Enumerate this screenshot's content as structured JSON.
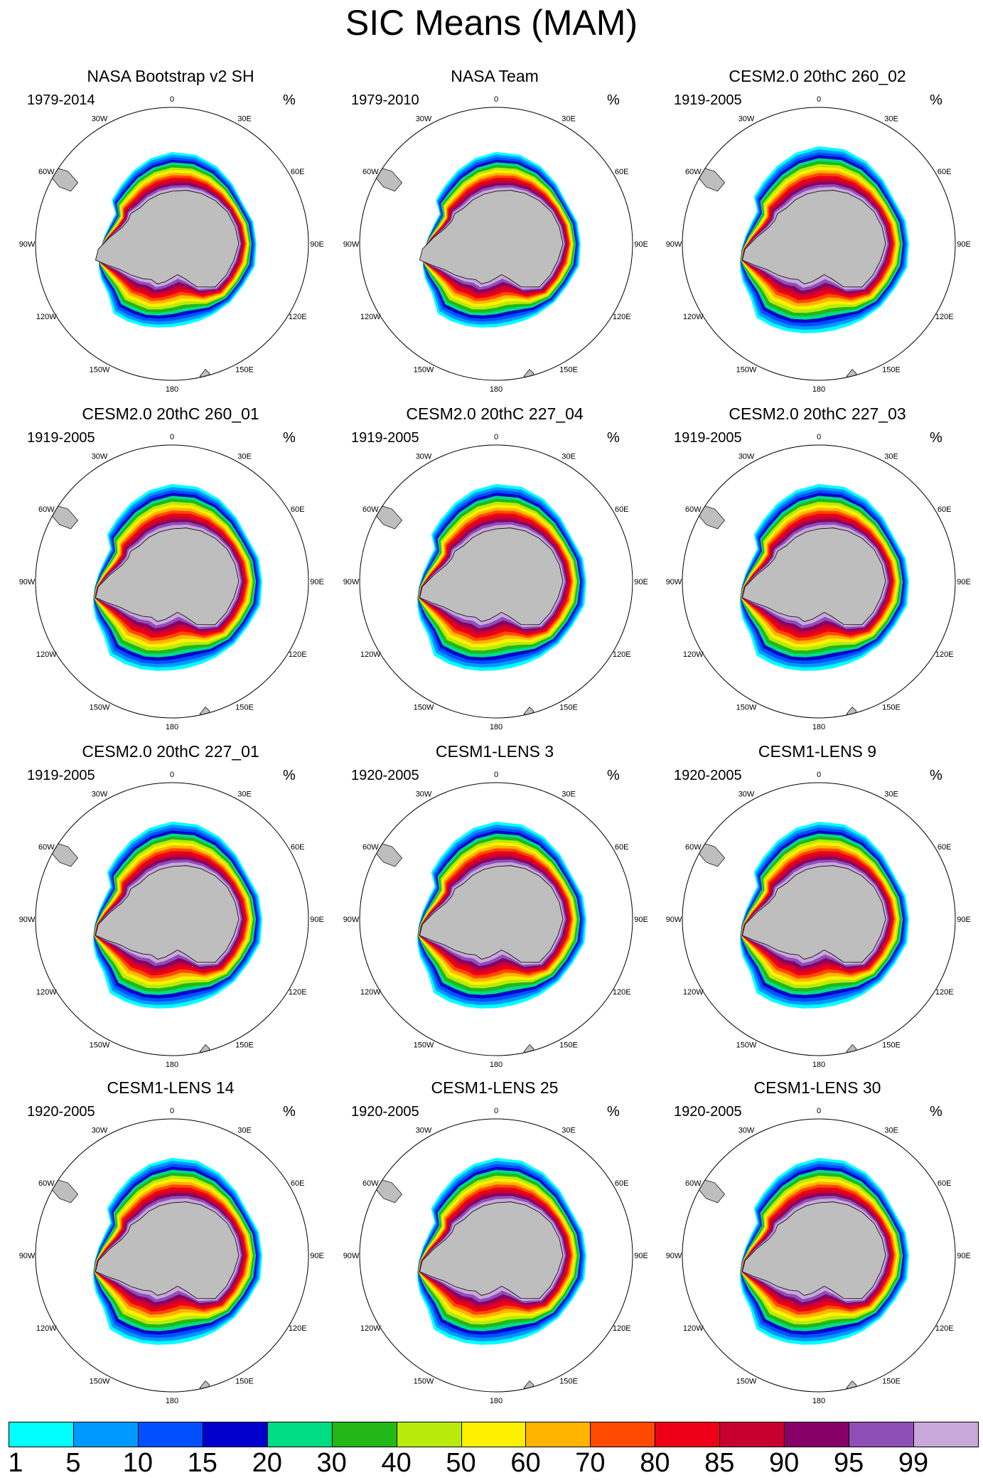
{
  "title": "SIC Means (MAM)",
  "unit": "%",
  "panels": [
    {
      "title": "NASA Bootstrap v2 SH",
      "years": "1979-2014"
    },
    {
      "title": "NASA Team",
      "years": "1979-2010"
    },
    {
      "title": "CESM2.0 20thC 260_02",
      "years": "1919-2005"
    },
    {
      "title": "CESM2.0 20thC 260_01",
      "years": "1919-2005"
    },
    {
      "title": "CESM2.0 20thC 227_04",
      "years": "1919-2005"
    },
    {
      "title": "CESM2.0 20thC 227_03",
      "years": "1919-2005"
    },
    {
      "title": "CESM2.0 20thC 227_01",
      "years": "1919-2005"
    },
    {
      "title": "CESM1-LENS 3",
      "years": "1920-2005"
    },
    {
      "title": "CESM1-LENS 9",
      "years": "1920-2005"
    },
    {
      "title": "CESM1-LENS 14",
      "years": "1920-2005"
    },
    {
      "title": "CESM1-LENS 25",
      "years": "1920-2005"
    },
    {
      "title": "CESM1-LENS 30",
      "years": "1920-2005"
    }
  ],
  "longitude_labels": [
    "0",
    "30E",
    "60E",
    "90E",
    "120E",
    "150E",
    "180",
    "150W",
    "120W",
    "90W",
    "60W",
    "30W"
  ],
  "colorbar": {
    "labels": [
      "1",
      "5",
      "10",
      "15",
      "20",
      "30",
      "40",
      "50",
      "60",
      "70",
      "80",
      "85",
      "90",
      "95",
      "99"
    ],
    "colors": [
      "#00ffff",
      "#0099ff",
      "#0050ff",
      "#0000cd",
      "#00dc82",
      "#22b818",
      "#b8eb0a",
      "#fff000",
      "#ffb400",
      "#ff4a00",
      "#ee0018",
      "#c8002e",
      "#860068",
      "#8e4fb7",
      "#c8a8d8"
    ]
  },
  "land_color": "#bebebe"
}
